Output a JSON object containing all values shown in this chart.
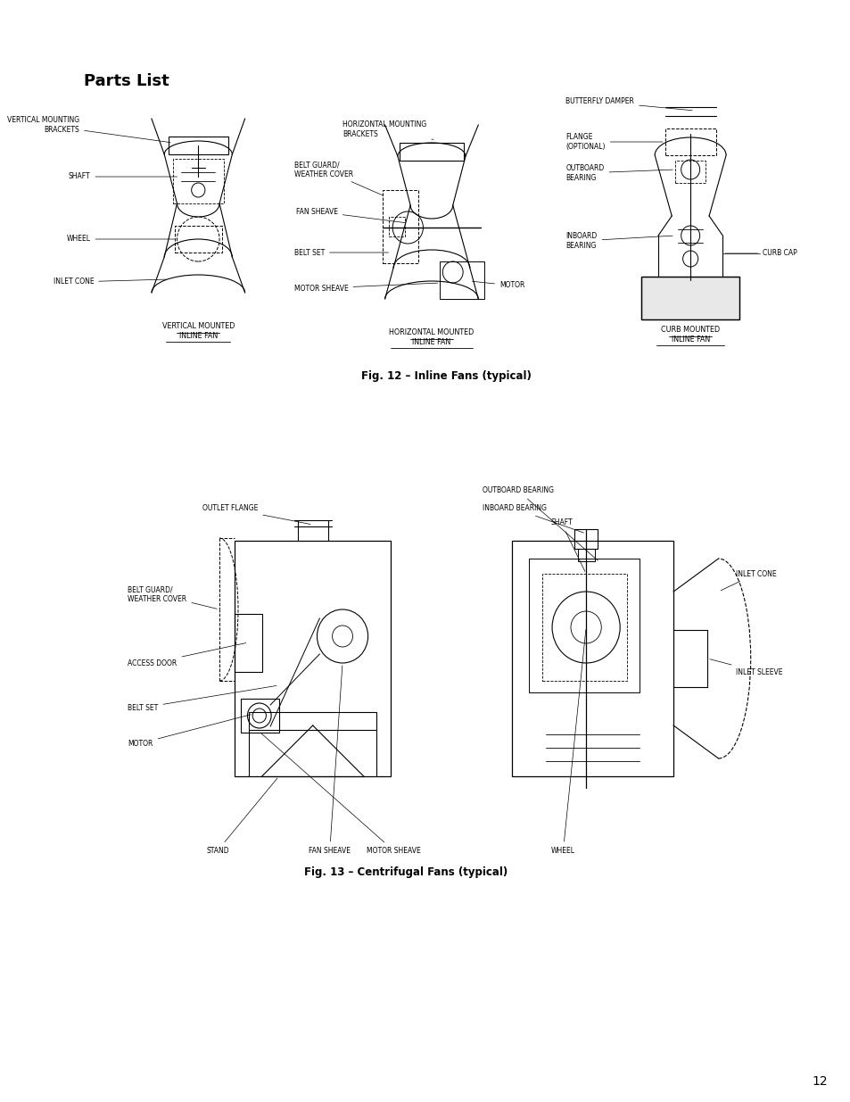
{
  "title": "Parts List",
  "fig12_caption": "Fig. 12 – Inline Fans (typical)",
  "fig13_caption": "Fig. 13 – Centrifugal Fans (typical)",
  "page_number": "12",
  "background_color": "#ffffff",
  "text_color": "#000000",
  "line_color": "#000000"
}
